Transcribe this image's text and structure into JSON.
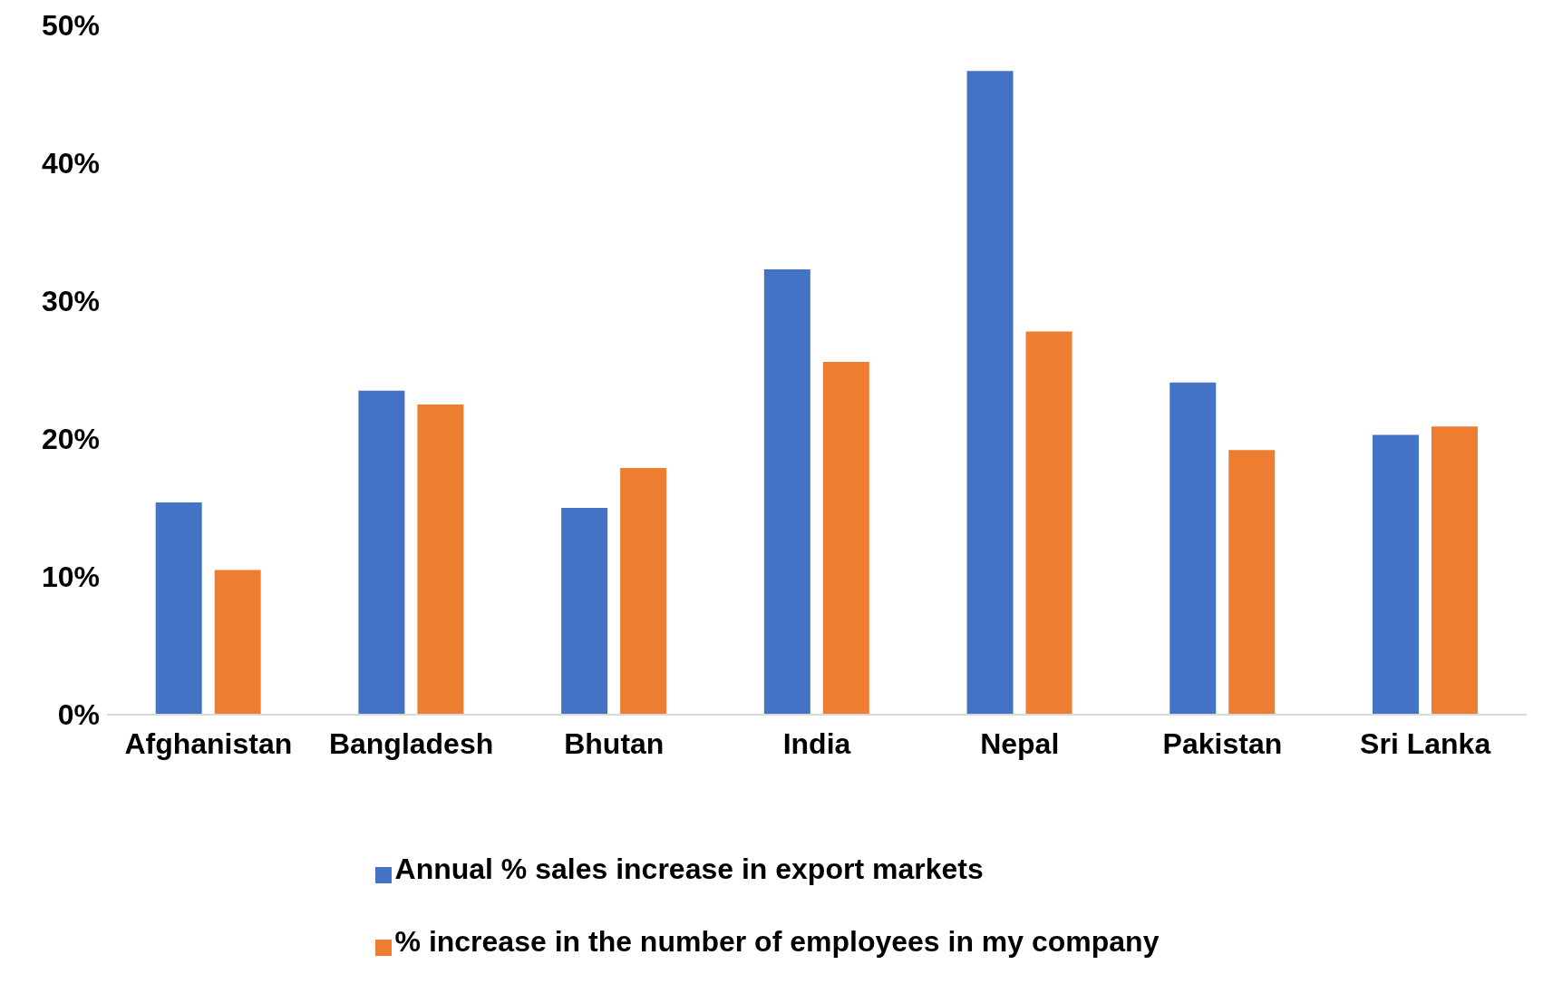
{
  "chart_data": {
    "type": "bar",
    "categories": [
      "Afghanistan",
      "Bangladesh",
      "Bhutan",
      "India",
      "Nepal",
      "Pakistan",
      "Sri Lanka"
    ],
    "series": [
      {
        "name": "Annual % sales increase in export markets",
        "color": "#4472c4",
        "values": [
          15.4,
          23.5,
          15.0,
          32.3,
          46.7,
          24.1,
          20.3
        ]
      },
      {
        "name": "% increase in the number of employees in my company",
        "color": "#ed7d31",
        "values": [
          10.5,
          22.5,
          17.9,
          25.6,
          27.8,
          19.2,
          20.9
        ]
      }
    ],
    "ylim": [
      0,
      50
    ],
    "yticks": [
      {
        "value": 0,
        "label": "0%"
      },
      {
        "value": 10,
        "label": "10%"
      },
      {
        "value": 20,
        "label": "20%"
      },
      {
        "value": 30,
        "label": "30%"
      },
      {
        "value": 40,
        "label": "40%"
      },
      {
        "value": 50,
        "label": "50%"
      }
    ],
    "grid": false,
    "legend": "bottom"
  }
}
